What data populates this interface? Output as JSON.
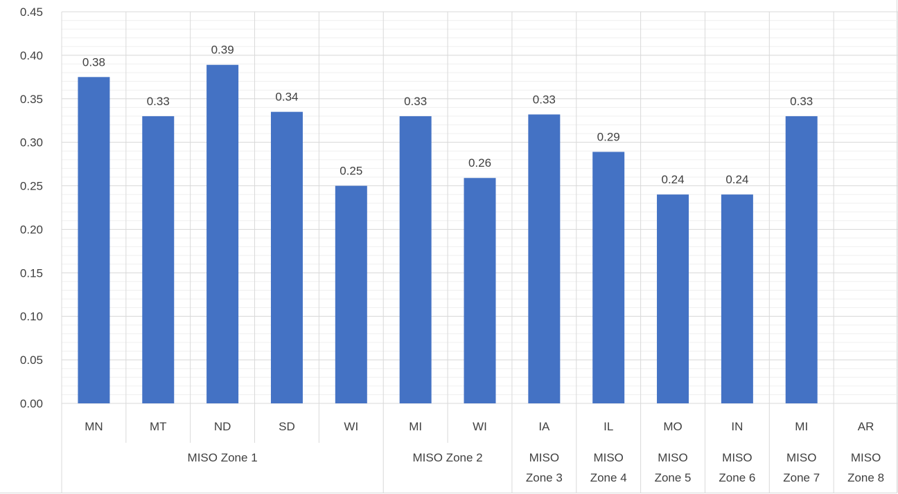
{
  "chart_data": {
    "type": "bar",
    "title": "",
    "xlabel": "",
    "ylabel": "",
    "ylim": [
      0,
      0.45
    ],
    "yticks": [
      "0.00",
      "0.05",
      "0.10",
      "0.15",
      "0.20",
      "0.25",
      "0.30",
      "0.35",
      "0.40",
      "0.45"
    ],
    "grid": "major and minor horizontal, vertical category separators",
    "categories": [
      "MN",
      "MT",
      "ND",
      "SD",
      "WI",
      "MI",
      "WI",
      "IA",
      "IL",
      "MO",
      "IN",
      "MI",
      "AR"
    ],
    "values": [
      0.375,
      0.33,
      0.389,
      0.335,
      0.25,
      0.33,
      0.259,
      0.332,
      0.289,
      0.24,
      0.24,
      0.33,
      null
    ],
    "data_labels": [
      "0.38",
      "0.33",
      "0.39",
      "0.34",
      "0.25",
      "0.33",
      "0.26",
      "0.33",
      "0.29",
      "0.24",
      "0.24",
      "0.33",
      ""
    ],
    "groups": [
      {
        "label": "MISO Zone 1",
        "start": 0,
        "count": 5
      },
      {
        "label": "MISO Zone 2",
        "start": 5,
        "count": 2
      },
      {
        "label": "MISO Zone 3",
        "start": 7,
        "count": 1
      },
      {
        "label": "MISO Zone 4",
        "start": 8,
        "count": 1
      },
      {
        "label": "MISO Zone 5",
        "start": 9,
        "count": 1
      },
      {
        "label": "MISO Zone 6",
        "start": 10,
        "count": 1
      },
      {
        "label": "MISO Zone 7",
        "start": 11,
        "count": 1
      },
      {
        "label": "MISO Zone 8",
        "start": 12,
        "count": 1
      }
    ],
    "colors": {
      "bar": "#4472C4",
      "major_grid": "#d9d9d9",
      "minor_grid": "#efefef",
      "text": "#404040"
    }
  }
}
